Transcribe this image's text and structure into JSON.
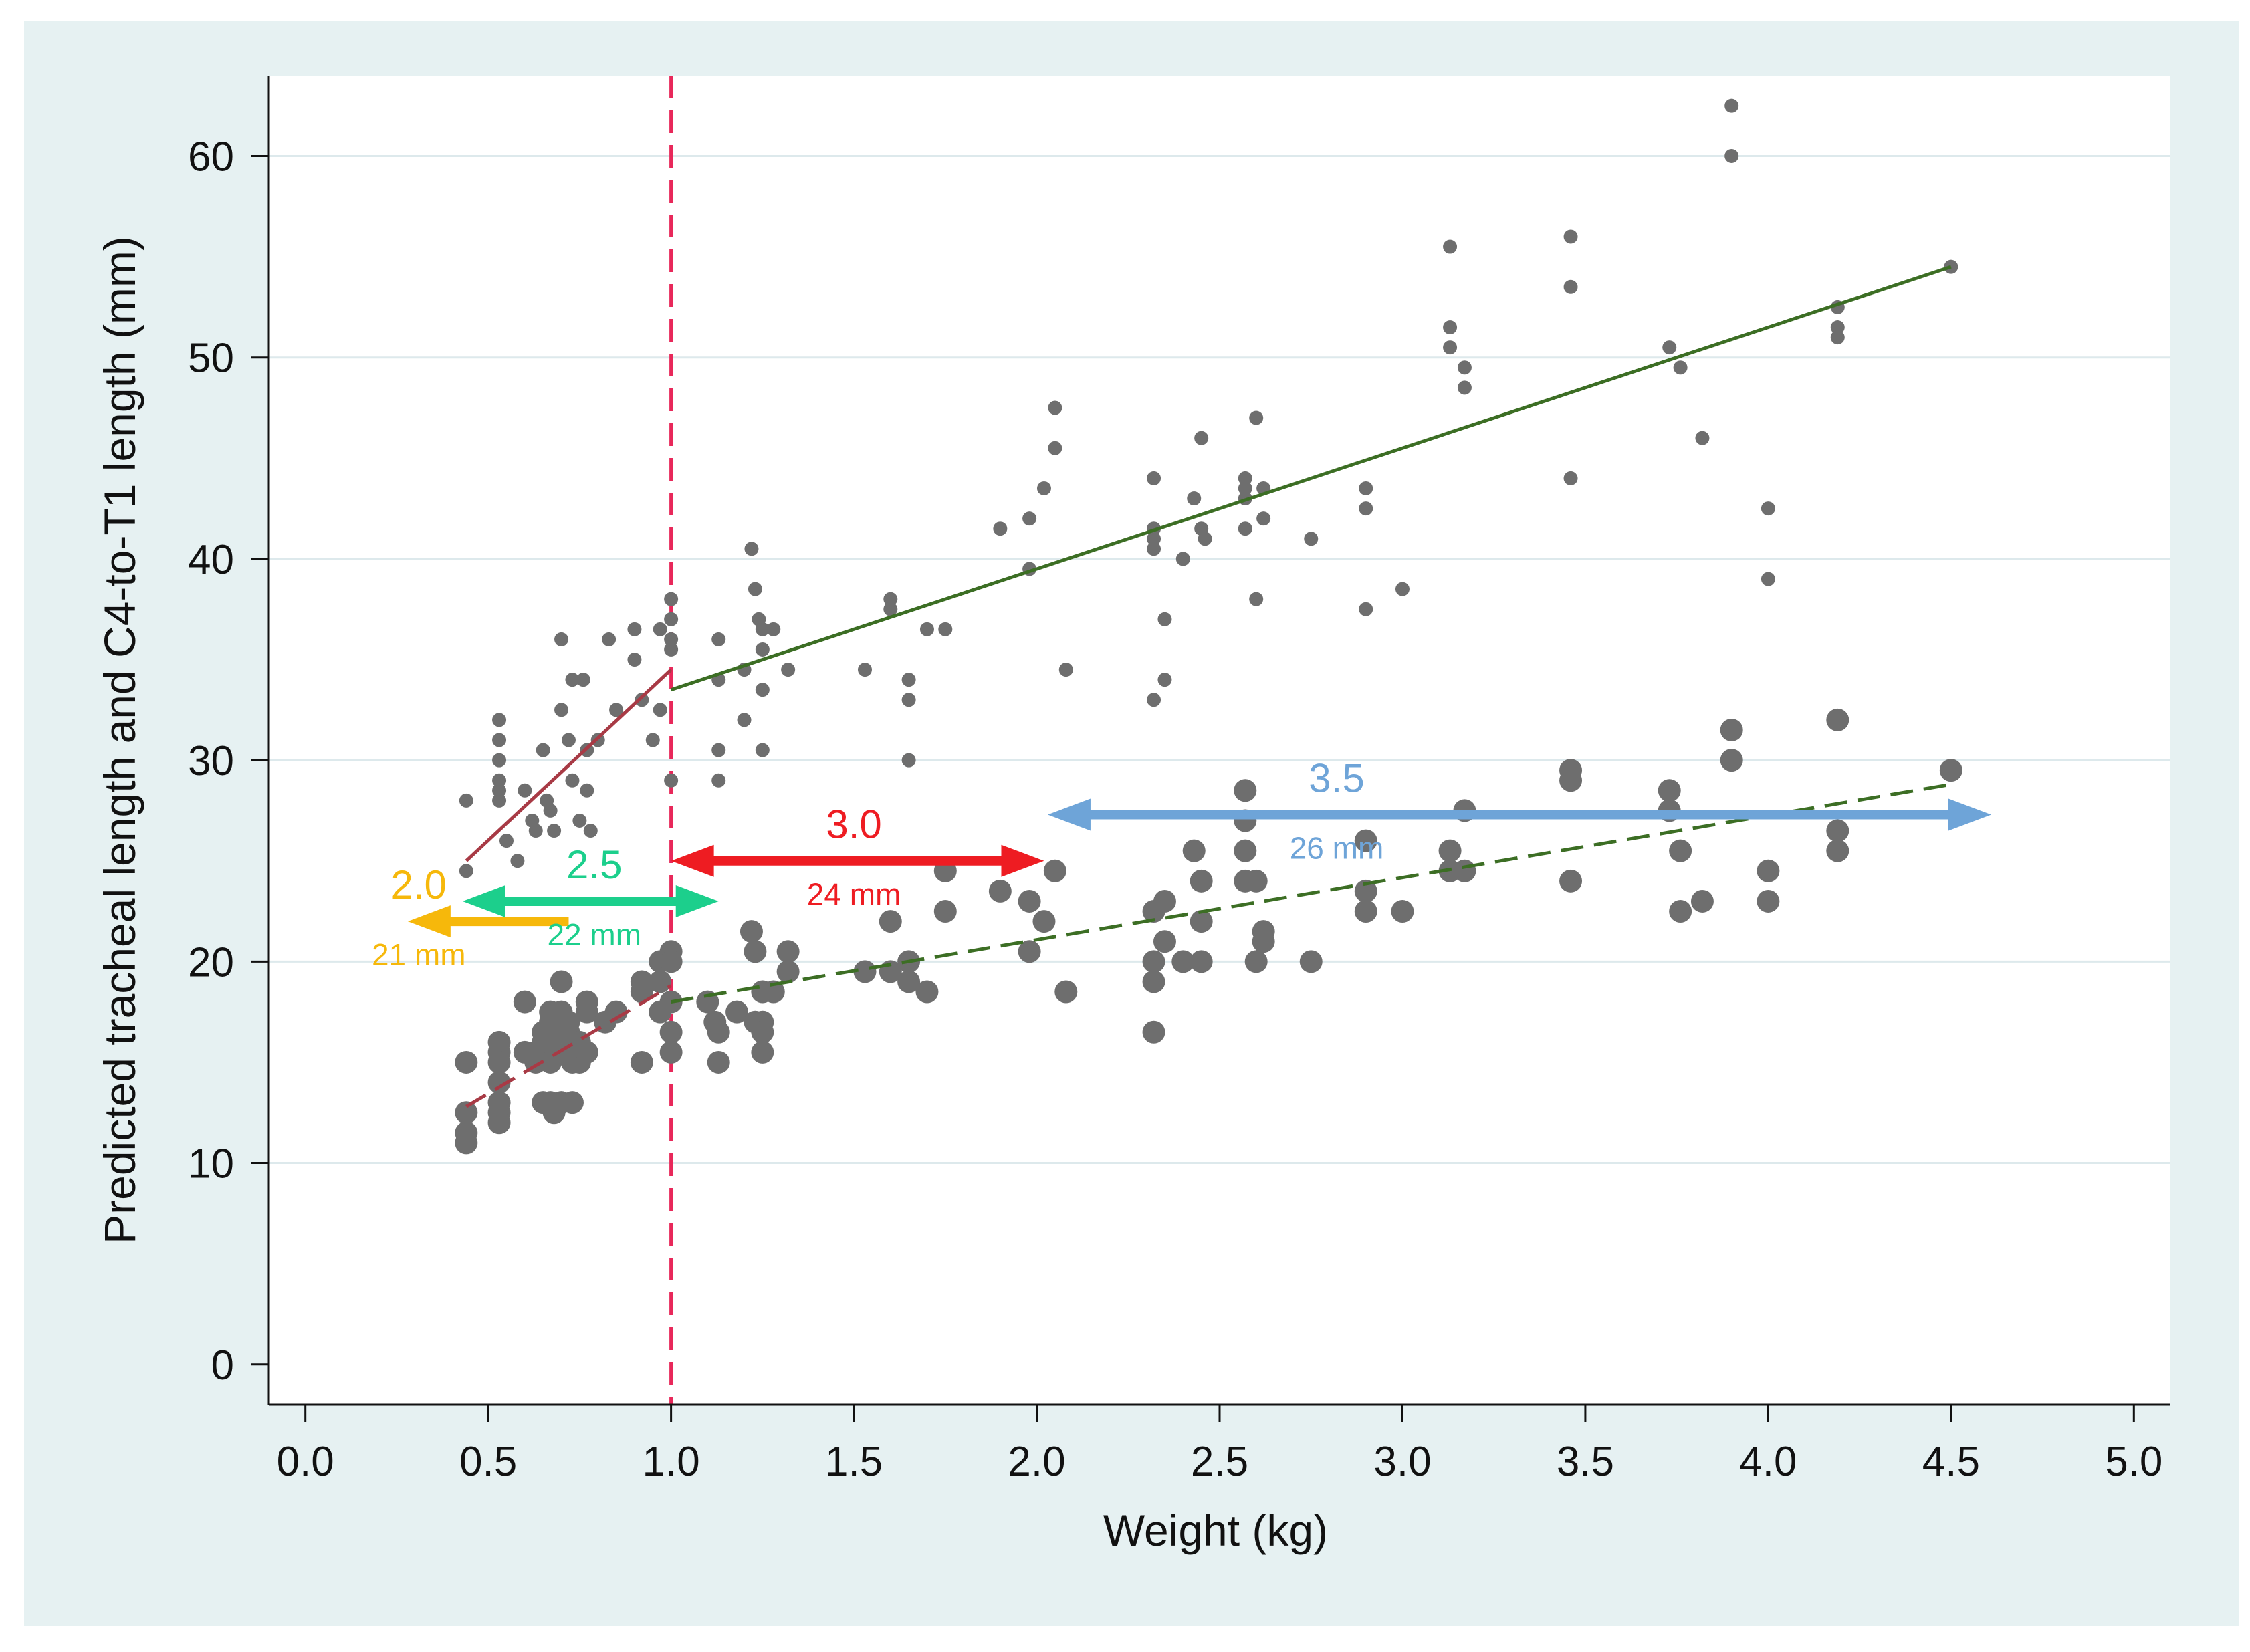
{
  "chart_data": {
    "type": "scatter",
    "title": "",
    "xlabel": "Weight (kg)",
    "ylabel": "Predicted tracheal length and C4-to-T1 length (mm)",
    "xlim": [
      -0.1,
      5.1
    ],
    "ylim": [
      -2,
      64
    ],
    "xticks": [
      "0.0",
      "0.5",
      "1.0",
      "1.5",
      "2.0",
      "2.5",
      "3.0",
      "3.5",
      "4.0",
      "4.5",
      "5.0"
    ],
    "xtick_values": [
      0,
      0.5,
      1,
      1.5,
      2,
      2.5,
      3,
      3.5,
      4,
      4.5,
      5
    ],
    "yticks": [
      "0",
      "10",
      "20",
      "30",
      "40",
      "50",
      "60"
    ],
    "ytick_values": [
      0,
      10,
      20,
      30,
      40,
      50,
      60
    ],
    "grid": "horizontal",
    "threshold_line": {
      "x": 1.0,
      "style": "dashed",
      "color": "#e8285a"
    },
    "series": [
      {
        "name": "Predicted tracheal length",
        "marker": "small",
        "color": "#6e6e6e",
        "points": [
          [
            0.44,
            28
          ],
          [
            0.44,
            24.5
          ],
          [
            0.53,
            32
          ],
          [
            0.53,
            31
          ],
          [
            0.53,
            30
          ],
          [
            0.53,
            29
          ],
          [
            0.53,
            28.5
          ],
          [
            0.53,
            28
          ],
          [
            0.55,
            26
          ],
          [
            0.58,
            25
          ],
          [
            0.6,
            28.5
          ],
          [
            0.62,
            27
          ],
          [
            0.63,
            26.5
          ],
          [
            0.65,
            30.5
          ],
          [
            0.66,
            28
          ],
          [
            0.67,
            27.5
          ],
          [
            0.68,
            26.5
          ],
          [
            0.7,
            36
          ],
          [
            0.7,
            32.5
          ],
          [
            0.72,
            31
          ],
          [
            0.73,
            34
          ],
          [
            0.73,
            29
          ],
          [
            0.75,
            27
          ],
          [
            0.76,
            34
          ],
          [
            0.77,
            30.5
          ],
          [
            0.77,
            28.5
          ],
          [
            0.78,
            26.5
          ],
          [
            0.8,
            31
          ],
          [
            0.83,
            36
          ],
          [
            0.85,
            32.5
          ],
          [
            0.9,
            36.5
          ],
          [
            0.9,
            35
          ],
          [
            0.92,
            33
          ],
          [
            0.95,
            31
          ],
          [
            0.97,
            36.5
          ],
          [
            0.97,
            32.5
          ],
          [
            1.0,
            38
          ],
          [
            1.0,
            37
          ],
          [
            1.0,
            36
          ],
          [
            1.0,
            35.5
          ],
          [
            1.0,
            29
          ],
          [
            1.13,
            36
          ],
          [
            1.13,
            34
          ],
          [
            1.13,
            30.5
          ],
          [
            1.13,
            29
          ],
          [
            1.2,
            34.5
          ],
          [
            1.2,
            32
          ],
          [
            1.22,
            40.5
          ],
          [
            1.23,
            38.5
          ],
          [
            1.24,
            37
          ],
          [
            1.25,
            36.5
          ],
          [
            1.25,
            35.5
          ],
          [
            1.25,
            33.5
          ],
          [
            1.25,
            30.5
          ],
          [
            1.28,
            36.5
          ],
          [
            1.32,
            34.5
          ],
          [
            1.53,
            34.5
          ],
          [
            1.6,
            38
          ],
          [
            1.6,
            37.5
          ],
          [
            1.65,
            34
          ],
          [
            1.65,
            33
          ],
          [
            1.65,
            30
          ],
          [
            1.7,
            36.5
          ],
          [
            1.75,
            36.5
          ],
          [
            1.9,
            41.5
          ],
          [
            1.98,
            42
          ],
          [
            1.98,
            39.5
          ],
          [
            2.02,
            43.5
          ],
          [
            2.05,
            47.5
          ],
          [
            2.05,
            45.5
          ],
          [
            2.08,
            34.5
          ],
          [
            2.32,
            44
          ],
          [
            2.32,
            41.5
          ],
          [
            2.32,
            41
          ],
          [
            2.32,
            40.5
          ],
          [
            2.32,
            33
          ],
          [
            2.35,
            37
          ],
          [
            2.35,
            34
          ],
          [
            2.4,
            40
          ],
          [
            2.43,
            43
          ],
          [
            2.45,
            46
          ],
          [
            2.45,
            41.5
          ],
          [
            2.46,
            41
          ],
          [
            2.57,
            44
          ],
          [
            2.57,
            43.5
          ],
          [
            2.57,
            43
          ],
          [
            2.57,
            41.5
          ],
          [
            2.6,
            47
          ],
          [
            2.6,
            38
          ],
          [
            2.62,
            43.5
          ],
          [
            2.62,
            42
          ],
          [
            2.75,
            41
          ],
          [
            2.9,
            43.5
          ],
          [
            2.9,
            42.5
          ],
          [
            2.9,
            37.5
          ],
          [
            3.0,
            38.5
          ],
          [
            3.13,
            55.5
          ],
          [
            3.13,
            51.5
          ],
          [
            3.13,
            50.5
          ],
          [
            3.17,
            49.5
          ],
          [
            3.17,
            48.5
          ],
          [
            3.46,
            56
          ],
          [
            3.46,
            53.5
          ],
          [
            3.46,
            44
          ],
          [
            3.73,
            50.5
          ],
          [
            3.76,
            49.5
          ],
          [
            3.82,
            46
          ],
          [
            3.9,
            62.5
          ],
          [
            3.9,
            60
          ],
          [
            4.0,
            42.5
          ],
          [
            4.0,
            39
          ],
          [
            4.19,
            52.5
          ],
          [
            4.19,
            51.5
          ],
          [
            4.19,
            51
          ],
          [
            4.5,
            54.5
          ]
        ]
      },
      {
        "name": "C4-to-T1 length",
        "marker": "large",
        "color": "#6e6e6e",
        "points": [
          [
            0.44,
            15
          ],
          [
            0.44,
            12.5
          ],
          [
            0.44,
            11.5
          ],
          [
            0.44,
            11
          ],
          [
            0.53,
            16
          ],
          [
            0.53,
            15.5
          ],
          [
            0.53,
            15
          ],
          [
            0.53,
            14
          ],
          [
            0.53,
            13
          ],
          [
            0.53,
            12.5
          ],
          [
            0.53,
            12
          ],
          [
            0.6,
            18
          ],
          [
            0.6,
            15.5
          ],
          [
            0.63,
            15.5
          ],
          [
            0.63,
            15
          ],
          [
            0.65,
            16.5
          ],
          [
            0.65,
            16
          ],
          [
            0.65,
            13
          ],
          [
            0.67,
            17.5
          ],
          [
            0.67,
            17
          ],
          [
            0.67,
            16
          ],
          [
            0.67,
            15
          ],
          [
            0.67,
            13
          ],
          [
            0.68,
            12.5
          ],
          [
            0.7,
            19
          ],
          [
            0.7,
            17.5
          ],
          [
            0.7,
            16.5
          ],
          [
            0.7,
            13
          ],
          [
            0.72,
            17
          ],
          [
            0.72,
            16.5
          ],
          [
            0.72,
            15.5
          ],
          [
            0.73,
            15
          ],
          [
            0.73,
            13
          ],
          [
            0.75,
            16
          ],
          [
            0.75,
            15
          ],
          [
            0.77,
            18
          ],
          [
            0.77,
            17.5
          ],
          [
            0.77,
            15.5
          ],
          [
            0.82,
            17
          ],
          [
            0.85,
            17.5
          ],
          [
            0.92,
            19
          ],
          [
            0.92,
            18.5
          ],
          [
            0.92,
            15
          ],
          [
            0.97,
            20
          ],
          [
            0.97,
            19
          ],
          [
            0.97,
            17.5
          ],
          [
            1.0,
            20.5
          ],
          [
            1.0,
            20
          ],
          [
            1.0,
            18
          ],
          [
            1.0,
            16.5
          ],
          [
            1.0,
            15.5
          ],
          [
            1.1,
            18
          ],
          [
            1.12,
            17
          ],
          [
            1.13,
            16.5
          ],
          [
            1.13,
            15
          ],
          [
            1.18,
            17.5
          ],
          [
            1.22,
            21.5
          ],
          [
            1.23,
            20.5
          ],
          [
            1.23,
            17
          ],
          [
            1.25,
            18.5
          ],
          [
            1.25,
            17
          ],
          [
            1.25,
            16.5
          ],
          [
            1.25,
            15.5
          ],
          [
            1.28,
            18.5
          ],
          [
            1.32,
            20.5
          ],
          [
            1.32,
            19.5
          ],
          [
            1.53,
            19.5
          ],
          [
            1.6,
            22
          ],
          [
            1.6,
            19.5
          ],
          [
            1.65,
            20
          ],
          [
            1.65,
            19
          ],
          [
            1.7,
            18.5
          ],
          [
            1.75,
            24.5
          ],
          [
            1.75,
            22.5
          ],
          [
            1.9,
            23.5
          ],
          [
            1.98,
            23
          ],
          [
            1.98,
            20.5
          ],
          [
            2.02,
            22
          ],
          [
            2.05,
            24.5
          ],
          [
            2.08,
            18.5
          ],
          [
            2.32,
            22.5
          ],
          [
            2.32,
            20
          ],
          [
            2.32,
            19
          ],
          [
            2.32,
            16.5
          ],
          [
            2.35,
            23
          ],
          [
            2.35,
            21
          ],
          [
            2.4,
            20
          ],
          [
            2.43,
            25.5
          ],
          [
            2.45,
            24
          ],
          [
            2.45,
            22
          ],
          [
            2.45,
            20
          ],
          [
            2.57,
            28.5
          ],
          [
            2.57,
            27
          ],
          [
            2.57,
            25.5
          ],
          [
            2.57,
            24
          ],
          [
            2.6,
            24
          ],
          [
            2.6,
            20
          ],
          [
            2.62,
            21.5
          ],
          [
            2.62,
            21
          ],
          [
            2.75,
            20
          ],
          [
            2.9,
            26
          ],
          [
            2.9,
            23.5
          ],
          [
            2.9,
            22.5
          ],
          [
            3.0,
            22.5
          ],
          [
            3.13,
            25.5
          ],
          [
            3.13,
            24.5
          ],
          [
            3.17,
            27.5
          ],
          [
            3.17,
            24.5
          ],
          [
            3.46,
            29.5
          ],
          [
            3.46,
            29
          ],
          [
            3.46,
            24
          ],
          [
            3.73,
            28.5
          ],
          [
            3.73,
            27.5
          ],
          [
            3.76,
            25.5
          ],
          [
            3.76,
            22.5
          ],
          [
            3.82,
            23
          ],
          [
            3.9,
            31.5
          ],
          [
            3.9,
            30
          ],
          [
            4.0,
            24.5
          ],
          [
            4.0,
            23
          ],
          [
            4.19,
            32
          ],
          [
            4.19,
            26.5
          ],
          [
            4.19,
            25.5
          ],
          [
            4.5,
            29.5
          ]
        ]
      }
    ],
    "fit_lines": [
      {
        "name": "tracheal fit, <1 kg",
        "color": "#a83a45",
        "dash": "solid",
        "points": [
          [
            0.44,
            25
          ],
          [
            1.0,
            34.5
          ]
        ]
      },
      {
        "name": "tracheal fit, >=1 kg",
        "color": "#3c6e24",
        "dash": "solid",
        "points": [
          [
            1.0,
            33.5
          ],
          [
            4.5,
            54.5
          ]
        ]
      },
      {
        "name": "C4-T1 fit, <1 kg",
        "color": "#a83a45",
        "dash": "dashed",
        "points": [
          [
            0.44,
            12.8
          ],
          [
            1.0,
            18.8
          ]
        ]
      },
      {
        "name": "C4-T1 fit, >=1 kg",
        "color": "#3c6e24",
        "dash": "dashed",
        "points": [
          [
            1.0,
            18.0
          ],
          [
            4.5,
            28.8
          ]
        ]
      }
    ],
    "arrows": [
      {
        "id": "arrow-2-0",
        "size": "2.0",
        "length": "21 mm",
        "color": "#f6b80b",
        "x_start": 0.28,
        "x_end": 0.72,
        "y": 22.0,
        "heads": "left",
        "label_x": 0.31
      },
      {
        "id": "arrow-2-5",
        "size": "2.5",
        "length": "22 mm",
        "color": "#1ccf8c",
        "x_start": 0.43,
        "x_end": 1.13,
        "y": 23.0,
        "heads": "both",
        "label_x": 0.79
      },
      {
        "id": "arrow-3-0",
        "size": "3.0",
        "length": "24 mm",
        "color": "#ee1c22",
        "x_start": 1.0,
        "x_end": 2.02,
        "y": 25.0,
        "heads": "both",
        "label_x": 1.5
      },
      {
        "id": "arrow-3-5",
        "size": "3.5",
        "length": "26 mm",
        "color": "#6ea4d8",
        "x_start": 2.03,
        "x_end": 4.61,
        "y": 27.3,
        "heads": "both",
        "label_x": 2.82
      }
    ]
  }
}
